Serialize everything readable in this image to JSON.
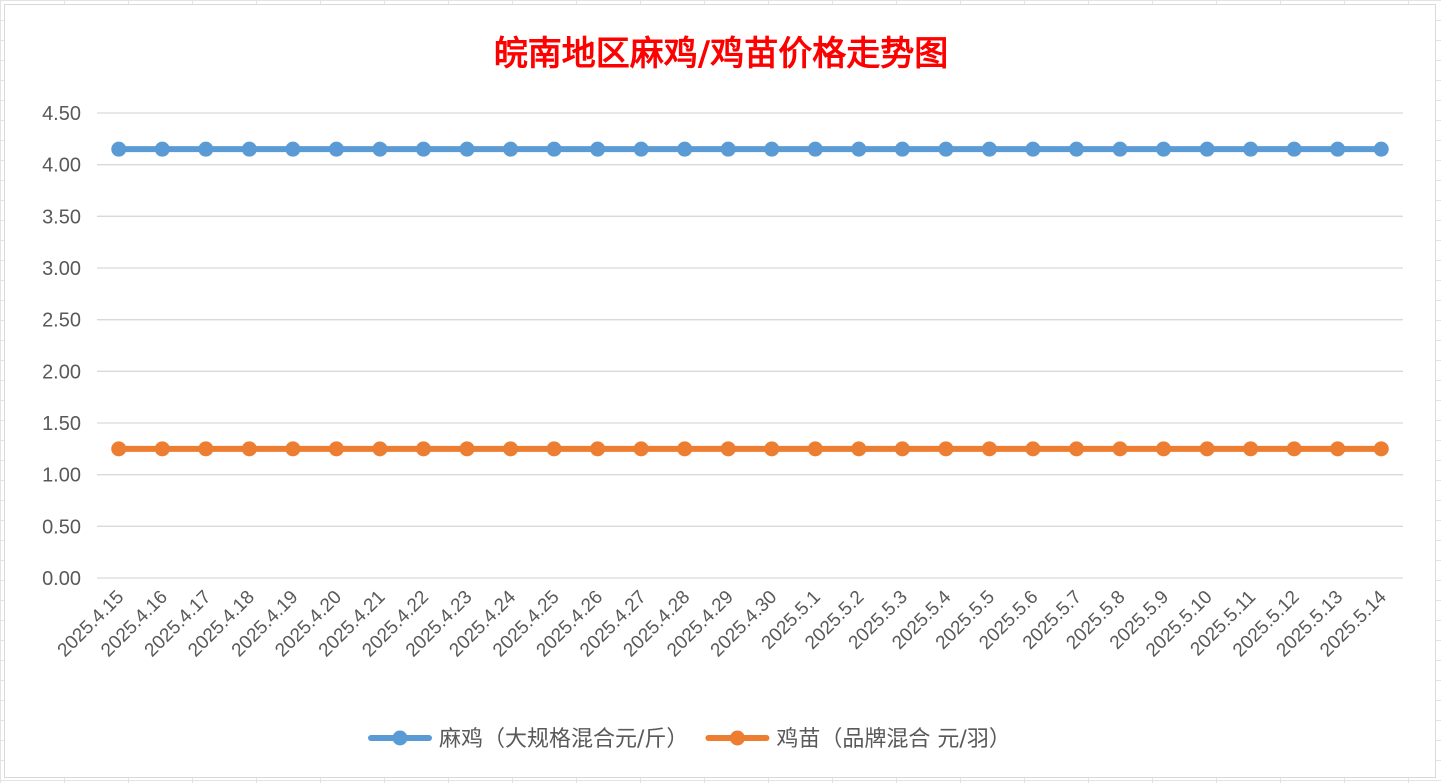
{
  "chart_data": {
    "type": "line",
    "title": "皖南地区麻鸡/鸡苗价格走势图",
    "xlabel": "",
    "ylabel": "",
    "ylim": [
      0,
      4.5
    ],
    "yticks": [
      "0.00",
      "0.50",
      "1.00",
      "1.50",
      "2.00",
      "2.50",
      "3.00",
      "3.50",
      "4.00",
      "4.50"
    ],
    "grid": true,
    "legend_position": "bottom",
    "categories": [
      "2025.4.15",
      "2025.4.16",
      "2025.4.17",
      "2025.4.18",
      "2025.4.19",
      "2025.4.20",
      "2025.4.21",
      "2025.4.22",
      "2025.4.23",
      "2025.4.24",
      "2025.4.25",
      "2025.4.26",
      "2025.4.27",
      "2025.4.28",
      "2025.4.29",
      "2025.4.30",
      "2025.5.1",
      "2025.5.2",
      "2025.5.3",
      "2025.5.4",
      "2025.5.5",
      "2025.5.6",
      "2025.5.7",
      "2025.5.8",
      "2025.5.9",
      "2025.5.10",
      "2025.5.11",
      "2025.5.12",
      "2025.5.13",
      "2025.5.14"
    ],
    "series": [
      {
        "name": "麻鸡（大规格混合元/斤）",
        "color": "#5b9bd5",
        "values": [
          4.15,
          4.15,
          4.15,
          4.15,
          4.15,
          4.15,
          4.15,
          4.15,
          4.15,
          4.15,
          4.15,
          4.15,
          4.15,
          4.15,
          4.15,
          4.15,
          4.15,
          4.15,
          4.15,
          4.15,
          4.15,
          4.15,
          4.15,
          4.15,
          4.15,
          4.15,
          4.15,
          4.15,
          4.15,
          4.15
        ]
      },
      {
        "name": "鸡苗（品牌混合 元/羽）",
        "color": "#ed7d31",
        "values": [
          1.25,
          1.25,
          1.25,
          1.25,
          1.25,
          1.25,
          1.25,
          1.25,
          1.25,
          1.25,
          1.25,
          1.25,
          1.25,
          1.25,
          1.25,
          1.25,
          1.25,
          1.25,
          1.25,
          1.25,
          1.25,
          1.25,
          1.25,
          1.25,
          1.25,
          1.25,
          1.25,
          1.25,
          1.25,
          1.25
        ]
      }
    ]
  }
}
